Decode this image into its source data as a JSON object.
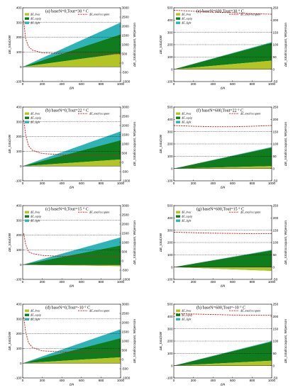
{
  "figure": {
    "colors": {
      "hvac": "#b4c424",
      "equip": "#0f7d1e",
      "light": "#2eb4b8",
      "occupant_line": "#d01818",
      "grid": "#000000"
    },
    "legend_labels": {
      "hvac": "ΔE_hvac",
      "equip": "ΔE_equip",
      "light": "ΔE_light",
      "occupant": "ΔE_total/occupant"
    }
  },
  "chart_data": [
    {
      "type": "area",
      "title": "(a) baseN=0,Tout=30 ° C",
      "xlabel": "ΔN",
      "ylabel_left": "ΔE_total,kW",
      "ylabel_right": "ΔE_total/occupant, W/person",
      "xlim": [
        0,
        1000
      ],
      "ylim_left": [
        -100,
        400
      ],
      "ylim_right": [
        -1000,
        3000
      ],
      "xticks": [
        "0",
        "200",
        "400",
        "600",
        "800",
        "1000"
      ],
      "yticks_left": [
        "-100",
        "0",
        "100",
        "200",
        "300",
        "400"
      ],
      "yticks_right": [
        "-1000",
        "-500",
        "0",
        "500",
        "1000",
        "1500",
        "2000",
        "2500",
        "3000"
      ],
      "grid_dotted_y": [
        100,
        200,
        300
      ],
      "stack_end": {
        "hvac": 90,
        "equip": 220,
        "light": 300
      },
      "occupant": [
        {
          "x": 10,
          "y": 2300
        },
        {
          "x": 30,
          "y": 1300
        },
        {
          "x": 60,
          "y": 900
        },
        {
          "x": 100,
          "y": 700
        },
        {
          "x": 200,
          "y": 560
        },
        {
          "x": 400,
          "y": 510
        },
        {
          "x": 600,
          "y": 500
        },
        {
          "x": 800,
          "y": 500
        },
        {
          "x": 1000,
          "y": 500
        }
      ]
    },
    {
      "type": "area",
      "title": "(e) baseN=600,Tout=30 ° C",
      "xlabel": "ΔN",
      "ylabel_left": "ΔE_total,kW",
      "ylabel_right": "ΔE_total/occupant, W/person",
      "xlim": [
        0,
        1000
      ],
      "ylim_left": [
        -100,
        500
      ],
      "ylim_right": [
        -50,
        250
      ],
      "xticks": [
        "0",
        "200",
        "400",
        "600",
        "800",
        "1000"
      ],
      "yticks_left": [
        "-100",
        "0",
        "100",
        "200",
        "300",
        "400",
        "500"
      ],
      "yticks_right": [
        "-50",
        "0",
        "50",
        "100",
        "150",
        "200",
        "250"
      ],
      "grid_dotted_y": [
        100,
        200,
        300
      ],
      "stack_end": {
        "hvac": 70,
        "equip": 215,
        "light": 220
      },
      "occupant": [
        {
          "x": 0,
          "y": 240
        },
        {
          "x": 200,
          "y": 236
        },
        {
          "x": 400,
          "y": 232
        },
        {
          "x": 600,
          "y": 230
        },
        {
          "x": 800,
          "y": 226
        },
        {
          "x": 1000,
          "y": 224
        }
      ]
    },
    {
      "type": "area",
      "title": "(b) baseN=0,Tout=22 ° C",
      "xlabel": "ΔN",
      "ylabel_left": "ΔE_total,kW",
      "ylabel_right": "ΔE_total/occupant, W/person",
      "xlim": [
        0,
        1000
      ],
      "ylim_left": [
        -100,
        400
      ],
      "ylim_right": [
        -1000,
        3000
      ],
      "xticks": [
        "0",
        "200",
        "400",
        "600",
        "800",
        "1000"
      ],
      "yticks_left": [
        "-100",
        "0",
        "100",
        "200",
        "300",
        "400"
      ],
      "yticks_right": [
        "-1000",
        "-500",
        "0",
        "500",
        "1000",
        "1500",
        "2000",
        "2500",
        "3000"
      ],
      "grid_dotted_y": [
        100,
        200,
        300
      ],
      "stack_end": {
        "hvac": 45,
        "equip": 175,
        "light": 235
      },
      "occupant": [
        {
          "x": 10,
          "y": 2300
        },
        {
          "x": 30,
          "y": 1500
        },
        {
          "x": 60,
          "y": 900
        },
        {
          "x": 100,
          "y": 650
        },
        {
          "x": 200,
          "y": 480
        },
        {
          "x": 400,
          "y": 410
        },
        {
          "x": 600,
          "y": 400
        },
        {
          "x": 800,
          "y": 400
        },
        {
          "x": 1000,
          "y": 400
        }
      ]
    },
    {
      "type": "area",
      "title": "(f) baseN=600,Tout=22 ° C",
      "xlabel": "ΔN",
      "ylabel_left": "ΔE_total,kW",
      "ylabel_right": "ΔE_total/occupant, W/person",
      "xlim": [
        0,
        1000
      ],
      "ylim_left": [
        -100,
        500
      ],
      "ylim_right": [
        -50,
        250
      ],
      "xticks": [
        "0",
        "200",
        "400",
        "600",
        "800",
        "1000"
      ],
      "yticks_left": [
        "-100",
        "0",
        "100",
        "200",
        "300",
        "400",
        "500"
      ],
      "yticks_right": [
        "-50",
        "0",
        "50",
        "100",
        "150",
        "200",
        "250"
      ],
      "grid_dotted_y": [
        100,
        200,
        300
      ],
      "stack_end": {
        "hvac": 20,
        "equip": 170,
        "light": 175
      },
      "occupant": [
        {
          "x": 0,
          "y": 175
        },
        {
          "x": 200,
          "y": 172
        },
        {
          "x": 400,
          "y": 170
        },
        {
          "x": 600,
          "y": 170
        },
        {
          "x": 800,
          "y": 172
        },
        {
          "x": 1000,
          "y": 175
        }
      ]
    },
    {
      "type": "area",
      "title": "(c) baseN=0,Tout=15 ° C",
      "xlabel": "ΔN",
      "ylabel_left": "ΔE_total,kW",
      "ylabel_right": "ΔE_total/occupant, W/person",
      "xlim": [
        0,
        1000
      ],
      "ylim_left": [
        -100,
        400
      ],
      "ylim_right": [
        -1000,
        3000
      ],
      "xticks": [
        "0",
        "200",
        "400",
        "600",
        "800",
        "1000"
      ],
      "yticks_left": [
        "-100",
        "0",
        "100",
        "200",
        "300",
        "400"
      ],
      "yticks_right": [
        "-1000",
        "-500",
        "0",
        "500",
        "1000",
        "1500",
        "2000",
        "2500",
        "3000"
      ],
      "grid_dotted_y": [
        100,
        200,
        300
      ],
      "stack_end": {
        "hvac": -10,
        "equip": 130,
        "light": 185
      },
      "occupant": [
        {
          "x": 10,
          "y": 1500
        },
        {
          "x": 30,
          "y": 900
        },
        {
          "x": 60,
          "y": 500
        },
        {
          "x": 100,
          "y": 400
        },
        {
          "x": 200,
          "y": 300
        },
        {
          "x": 400,
          "y": 250
        },
        {
          "x": 600,
          "y": 240
        },
        {
          "x": 800,
          "y": 235
        },
        {
          "x": 1000,
          "y": 235
        }
      ]
    },
    {
      "type": "area",
      "title": "(g) baseN=600,Tout=15 ° C",
      "xlabel": "ΔN",
      "ylabel_left": "ΔE_total,kW",
      "ylabel_right": "ΔE_total/occupant, W/person",
      "xlim": [
        0,
        1000
      ],
      "ylim_left": [
        -100,
        500
      ],
      "ylim_right": [
        -50,
        250
      ],
      "xticks": [
        "0",
        "200",
        "400",
        "600",
        "800",
        "1000"
      ],
      "yticks_left": [
        "-100",
        "0",
        "100",
        "200",
        "300",
        "400",
        "500"
      ],
      "yticks_right": [
        "-50",
        "0",
        "50",
        "100",
        "150",
        "200",
        "250"
      ],
      "grid_dotted_y": [
        100,
        200,
        300
      ],
      "stack_end": {
        "hvac": -30,
        "equip": 135,
        "light": 140
      },
      "occupant": [
        {
          "x": 0,
          "y": 142
        },
        {
          "x": 200,
          "y": 140
        },
        {
          "x": 400,
          "y": 138
        },
        {
          "x": 600,
          "y": 137
        },
        {
          "x": 800,
          "y": 136
        },
        {
          "x": 1000,
          "y": 136
        }
      ]
    },
    {
      "type": "area",
      "title": "(d) baseN=0,Tout=-10 ° C",
      "xlabel": "ΔN",
      "ylabel_left": "ΔE_total,kW",
      "ylabel_right": "ΔE_total/occupant, W/person",
      "xlim": [
        0,
        1000
      ],
      "ylim_left": [
        -100,
        400
      ],
      "ylim_right": [
        -1000,
        3000
      ],
      "xticks": [
        "0",
        "200",
        "400",
        "600",
        "800",
        "1000"
      ],
      "yticks_left": [
        "-100",
        "0",
        "100",
        "200",
        "300",
        "400"
      ],
      "yticks_right": [
        "-1000",
        "-500",
        "0",
        "500",
        "1000",
        "1500",
        "2000",
        "2500",
        "3000"
      ],
      "grid_dotted_y": [
        100,
        200,
        300
      ],
      "stack_end": {
        "hvac": 40,
        "equip": 170,
        "light": 230
      },
      "occupant": [
        {
          "x": 10,
          "y": 2300
        },
        {
          "x": 30,
          "y": 1500
        },
        {
          "x": 60,
          "y": 900
        },
        {
          "x": 100,
          "y": 650
        },
        {
          "x": 200,
          "y": 470
        },
        {
          "x": 400,
          "y": 410
        },
        {
          "x": 600,
          "y": 400
        },
        {
          "x": 800,
          "y": 395
        },
        {
          "x": 1000,
          "y": 395
        }
      ]
    },
    {
      "type": "area",
      "title": "(h) baseN=600,Tout=-10 ° C",
      "xlabel": "ΔN",
      "ylabel_left": "ΔE_total,kW",
      "ylabel_right": "ΔE_total/occupant, W/person",
      "xlim": [
        0,
        1000
      ],
      "ylim_left": [
        -100,
        500
      ],
      "ylim_right": [
        -50,
        250
      ],
      "xticks": [
        "0",
        "200",
        "400",
        "600",
        "800",
        "1000"
      ],
      "yticks_left": [
        "-100",
        "0",
        "100",
        "200",
        "300",
        "400",
        "500"
      ],
      "yticks_right": [
        "-50",
        "0",
        "50",
        "100",
        "150",
        "200",
        "250"
      ],
      "grid_dotted_y": [
        100,
        200,
        300
      ],
      "stack_end": {
        "hvac": 40,
        "equip": 195,
        "light": 200
      },
      "occupant": [
        {
          "x": 0,
          "y": 212
        },
        {
          "x": 200,
          "y": 210
        },
        {
          "x": 400,
          "y": 208
        },
        {
          "x": 600,
          "y": 206
        },
        {
          "x": 800,
          "y": 205
        },
        {
          "x": 1000,
          "y": 205
        }
      ]
    }
  ]
}
